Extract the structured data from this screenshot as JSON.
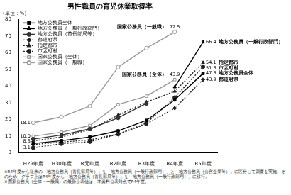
{
  "chart_data": {
    "type": "line",
    "title": "男性職員の育児休業取得率",
    "y_label": "(単位：%)",
    "categories": [
      "H29年度",
      "H30年度",
      "R元年度",
      "R2年度",
      "R3年度",
      "R4年度",
      "R5年度"
    ],
    "series": [
      {
        "name": "地方公務員全体",
        "color": "#000000",
        "marker": "square",
        "line_style": "solid",
        "values": [
          5.6,
          7.3,
          9.5,
          13.2,
          19.5,
          31.8,
          47.6
        ],
        "value_labels": [
          null,
          null,
          null,
          null,
          null,
          null,
          "47.6"
        ]
      },
      {
        "name": "地方公務員（一般行政部門）",
        "color": "#000000",
        "marker": "triangle",
        "line_style": "solid",
        "values": [
          null,
          null,
          null,
          null,
          null,
          39.5,
          66.4
        ],
        "value_labels": [
          null,
          null,
          null,
          null,
          null,
          null,
          "66.4"
        ]
      },
      {
        "name": "地方公務員（首長部局等）",
        "color": "#333333",
        "marker": "circle",
        "line_style": "solid",
        "values": [
          8.3,
          10.7,
          14.4,
          21.0,
          29.6,
          null,
          null
        ],
        "value_labels": [
          "8.3",
          null,
          null,
          null,
          null,
          null,
          null
        ]
      },
      {
        "name": "都道府県",
        "color": "#222222",
        "marker": "diamond",
        "line_style": "dotted",
        "values": [
          5.0,
          6.5,
          7.8,
          11.3,
          17.3,
          26.8,
          43.9
        ],
        "value_labels": [
          null,
          null,
          null,
          null,
          null,
          null,
          "43.9"
        ]
      },
      {
        "name": "指定都市",
        "color": "#222222",
        "marker": "triangle",
        "line_style": "dotted",
        "values": [
          7.2,
          9.6,
          13.9,
          22.6,
          30.5,
          36.9,
          54.1
        ],
        "value_labels": [
          null,
          null,
          null,
          null,
          null,
          null,
          "54.1"
        ]
      },
      {
        "name": "市区町村",
        "color": "#222222",
        "marker": "circle",
        "line_style": "dotted",
        "values": [
          3.1,
          5.5,
          6.7,
          11.2,
          17.9,
          33.2,
          51.6
        ],
        "value_labels": [
          "3.1",
          null,
          null,
          null,
          null,
          null,
          "51.6"
        ]
      },
      {
        "name": "国家公務員（全体）",
        "color": "#999999",
        "marker": "square-open",
        "line_style": "solid",
        "values": [
          10.0,
          12.4,
          16.4,
          29.0,
          34.0,
          43.9,
          null
        ],
        "value_labels": [
          "10.0",
          null,
          null,
          null,
          null,
          "43.9",
          null
        ]
      },
      {
        "name": "国家公務員（一般職）",
        "color": "#999999",
        "marker": "circle-open",
        "line_style": "solid",
        "values": [
          18.1,
          21.6,
          28.0,
          51.4,
          62.8,
          72.5,
          null
        ],
        "value_labels": [
          "18.1",
          null,
          null,
          null,
          null,
          "72.5",
          null
        ]
      }
    ],
    "annotations": [
      {
        "text": "国家公務員（一般職）",
        "series": "国家公務員（一般職）"
      },
      {
        "text": "国家公務員（全体）",
        "series": "国家公務員（全体）"
      },
      {
        "text": "地方公務員（一般行政部門）",
        "series": "地方公務員（一般行政部門）"
      },
      {
        "text": "指定都市",
        "series": "指定都市"
      },
      {
        "text": "市区町村",
        "series": "市区町村"
      },
      {
        "text": "地方公務員全体",
        "series": "地方公務員全体"
      },
      {
        "text": "都道府県",
        "series": "都道府県"
      }
    ],
    "notes": [
      "※R4年度から従来の「地方公務員（首長部局等）」を「地方公務員（一般行政部門）」と「地方公務員（公営企業等）」に区分して調査を実施。そのため、グラフ上はR4年度から「地方公務員（首長部局等）」を「地方公務員（一般行政部門）」に移行。",
      "※国家公務員（全体・一般職）の最新公表値は、本資料公表時点でR4年度。"
    ],
    "ylim": [
      0,
      80
    ],
    "yticks": [
      0,
      10,
      20,
      30,
      40,
      50,
      60,
      70,
      80
    ],
    "grid": false,
    "legend": "top-left",
    "data_labels": true
  }
}
